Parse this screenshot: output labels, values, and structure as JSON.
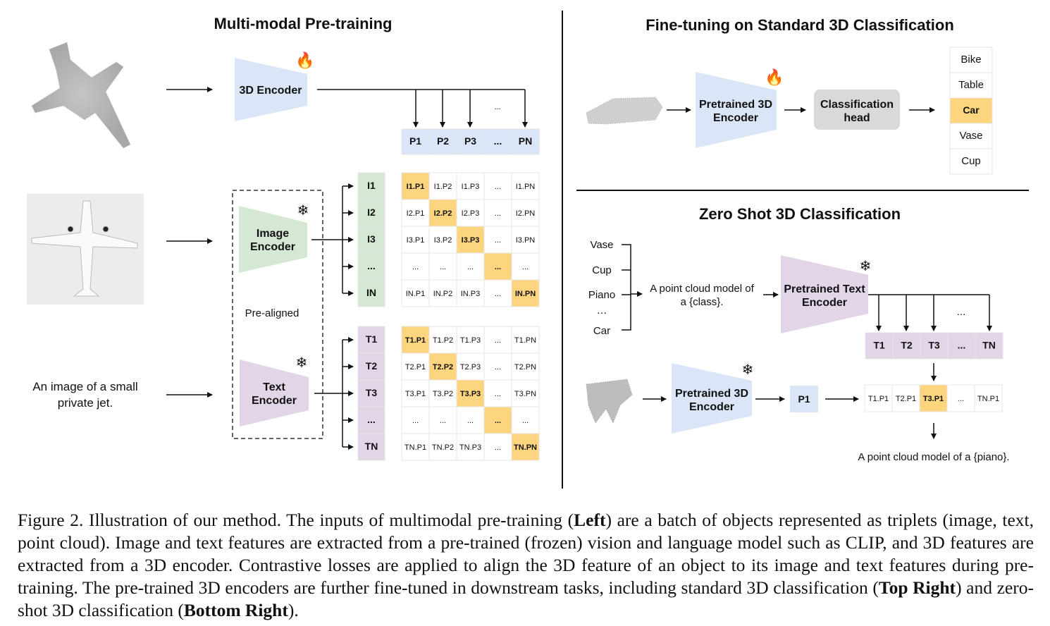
{
  "left": {
    "title": "Multi-modal Pre-training",
    "encoder_3d": "3D Encoder",
    "image_encoder": [
      "Image",
      "Encoder"
    ],
    "text_encoder": [
      "Text",
      "Encoder"
    ],
    "pre_aligned": "Pre-aligned",
    "text_input": [
      "An image of a small",
      "private jet."
    ],
    "point_ellipsis": "...",
    "point_row": [
      "P1",
      "P2",
      "P3",
      "...",
      "PN"
    ],
    "image_col": [
      "I1",
      "I2",
      "I3",
      "...",
      "IN"
    ],
    "text_col": [
      "T1",
      "T2",
      "T3",
      "...",
      "TN"
    ],
    "image_matrix": [
      [
        "I1.P1",
        "I1.P2",
        "I1.P3",
        "...",
        "I1.PN"
      ],
      [
        "I2.P1",
        "I2.P2",
        "I2.P3",
        "...",
        "I2.PN"
      ],
      [
        "I3.P1",
        "I3.P2",
        "I3.P3",
        "...",
        "I3.PN"
      ],
      [
        "...",
        "...",
        "...",
        "...",
        "..."
      ],
      [
        "IN.P1",
        "IN.P2",
        "IN.P3",
        "...",
        "IN.PN"
      ]
    ],
    "text_matrix": [
      [
        "T1.P1",
        "T1.P2",
        "T1.P3",
        "...",
        "T1.PN"
      ],
      [
        "T2.P1",
        "T2.P2",
        "T2.P3",
        "...",
        "T2.PN"
      ],
      [
        "T3.P1",
        "T3.P2",
        "T3.P3",
        "...",
        "T3.PN"
      ],
      [
        "...",
        "...",
        "...",
        "...",
        "..."
      ],
      [
        "TN.P1",
        "TN.P2",
        "TN.P3",
        "...",
        "TN.PN"
      ]
    ]
  },
  "finetune": {
    "title": "Fine-tuning on Standard 3D Classification",
    "encoder": [
      "Pretrained 3D",
      "Encoder"
    ],
    "head": [
      "Classification",
      "head"
    ],
    "classes": [
      "Bike",
      "Table",
      "Car",
      "Vase",
      "Cup"
    ],
    "selected_class": "Car"
  },
  "zeroshot": {
    "title": "Zero Shot 3D Classification",
    "classes": [
      "Vase",
      "Cup",
      "Piano",
      "…",
      "Car"
    ],
    "prompt": [
      "A point cloud model of",
      "a {class}."
    ],
    "text_encoder": [
      "Pretrained Text",
      "Encoder"
    ],
    "ellipsis": "...",
    "text_row": [
      "T1",
      "T2",
      "T3",
      "...",
      "TN"
    ],
    "encoder_3d": [
      "Pretrained 3D",
      "Encoder"
    ],
    "point_feature": "P1",
    "scores": [
      "T1.P1",
      "T2.P1",
      "T3.P1",
      "...",
      "TN.P1"
    ],
    "result": "A point cloud model of a {piano}."
  },
  "colors": {
    "encoder_3d": "#dae6f8",
    "image": "#d5e8d4",
    "text": "#e1d5e7",
    "highlight": "#fdd57e",
    "head": "#d9d9d9"
  },
  "icons": {
    "trainable": "fire-icon",
    "frozen": "snowflake-icon"
  },
  "caption": [
    {
      "t": "Figure 2. Illustration of our method. The inputs of multimodal pre-training (",
      "b": false
    },
    {
      "t": "Left",
      "b": true
    },
    {
      "t": ") are a batch of objects represented as triplets (image, text, point cloud). Image and text features are extracted from a pre-trained (frozen) vision and language model such as CLIP, and 3D features are extracted from a 3D encoder. Contrastive losses are applied to align the 3D feature of an object to its image and text features during pre-training. The pre-trained 3D encoders are further fine-tuned in downstream tasks, including standard 3D classification (",
      "b": false
    },
    {
      "t": "Top Right",
      "b": true
    },
    {
      "t": ") and zero-shot 3D classification (",
      "b": false
    },
    {
      "t": "Bottom Right",
      "b": true
    },
    {
      "t": ").",
      "b": false
    }
  ]
}
